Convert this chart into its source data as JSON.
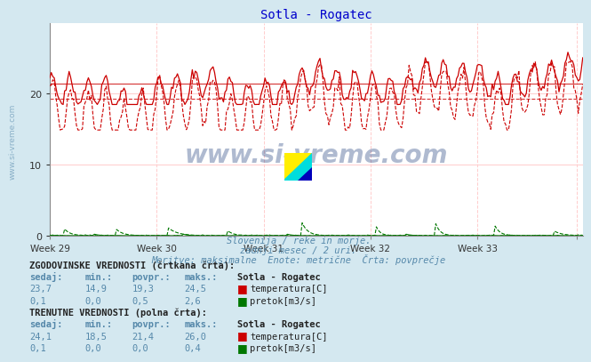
{
  "title": "Sotla - Rogatec",
  "background_color": "#d4e8f0",
  "plot_bg_color": "#ffffff",
  "grid_color": "#ffcccc",
  "x_labels": [
    "Week 29",
    "Week 30",
    "Week 31",
    "Week 32",
    "Week 33"
  ],
  "ylim": [
    0,
    30
  ],
  "yticks": [
    0,
    10,
    20
  ],
  "n_points": 360,
  "temp_hist_color": "#cc0000",
  "temp_curr_color": "#cc0000",
  "flow_hist_color": "#007700",
  "flow_curr_color": "#007700",
  "avg_temp_hist": 19.3,
  "avg_temp_curr": 21.4,
  "temp_hist_min": 14.9,
  "temp_hist_max": 24.5,
  "temp_curr_min": 18.5,
  "temp_curr_max": 26.0,
  "flow_hist_max": 2.6,
  "flow_curr_max": 0.4,
  "watermark": "www.si-vreme.com",
  "subtitle1": "Slovenija / reke in morje.",
  "subtitle2": "zadnji mesec / 2 uri.",
  "subtitle3": "Meritve: maksimalne  Enote: metrične  Črta: povprečje",
  "table_title1": "ZGODOVINSKE VREDNOSTI (črtkana črta):",
  "table_title2": "TRENUTNE VREDNOSTI (polna črta):",
  "col_headers": [
    "sedaj:",
    "min.:",
    "povpr.:",
    "maks.:",
    "Sotla - Rogatec"
  ],
  "hist_row1": [
    "23,7",
    "14,9",
    "19,3",
    "24,5",
    "temperatura[C]"
  ],
  "hist_row2": [
    "0,1",
    "0,0",
    "0,5",
    "2,6",
    "pretok[m3/s]"
  ],
  "curr_row1": [
    "24,1",
    "18,5",
    "21,4",
    "26,0",
    "temperatura[C]"
  ],
  "curr_row2": [
    "0,1",
    "0,0",
    "0,0",
    "0,4",
    "pretok[m3/s]"
  ],
  "left_label_color": "#5588aa",
  "title_color": "#0000cc",
  "text_color": "#333333"
}
